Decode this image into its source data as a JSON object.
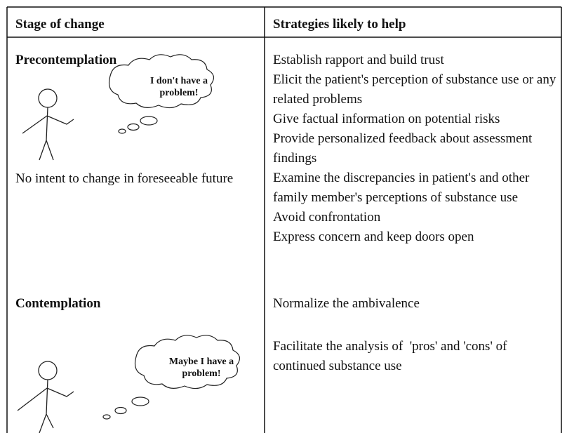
{
  "header": {
    "columns": [
      "Stage of change",
      "Strategies likely to help"
    ]
  },
  "rows": [
    {
      "stage": "Precontemplation",
      "bubble": "I don't have a problem!",
      "description": "No intent to change in foreseeable future",
      "strategies": [
        "Establish rapport and build trust",
        "Elicit the patient's perception of substance use or any related problems",
        "Give factual information on potential risks",
        "Provide personalized feedback about assessment findings",
        "Examine the discrepancies in patient's and other family member's perceptions of substance use",
        "Avoid confrontation",
        "Express concern and keep doors open"
      ]
    },
    {
      "stage": "Contemplation",
      "bubble": "Maybe I have a problem!",
      "strategies": [
        "Normalize the ambivalence",
        "Facilitate the analysis of  'pros' and 'cons' of continued substance use"
      ]
    }
  ]
}
